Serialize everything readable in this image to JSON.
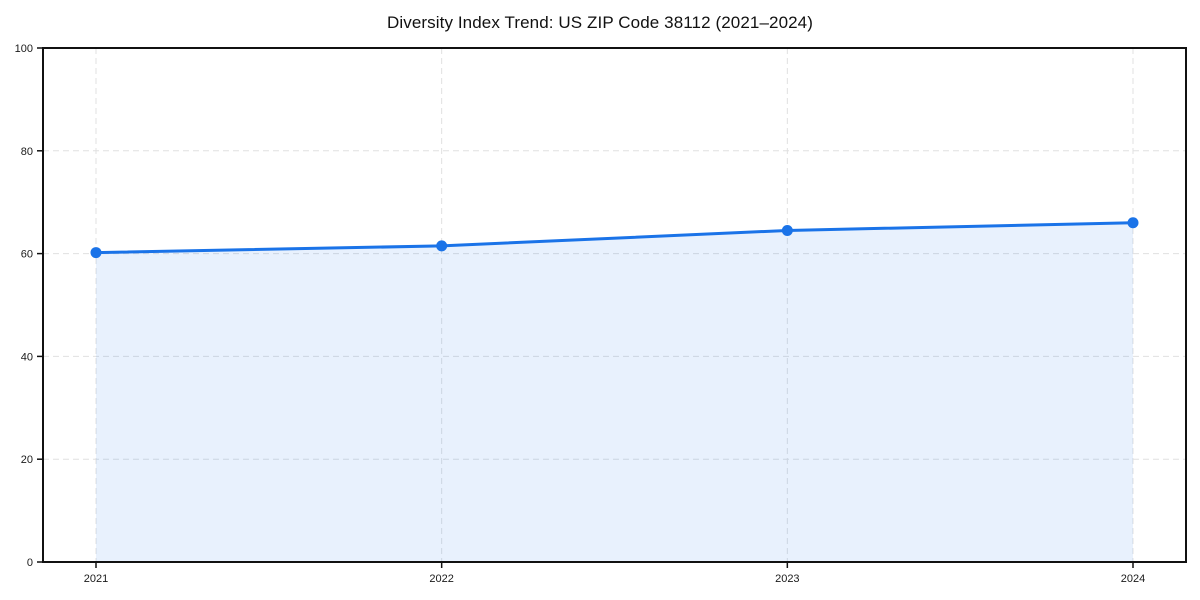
{
  "page": {
    "background": "#ffffff"
  },
  "chart_data": {
    "type": "area",
    "title": "Diversity Index Trend: US ZIP Code 38112 (2021–2024)",
    "categories": [
      "2021",
      "2022",
      "2023",
      "2024"
    ],
    "values": [
      60.2,
      61.5,
      64.5,
      66.0
    ],
    "xlabel": "",
    "ylabel": "",
    "ylim": [
      0,
      100
    ],
    "yticks": [
      0,
      20,
      40,
      60,
      80,
      100
    ],
    "grid": true,
    "legend_position": "none",
    "colors": {
      "line": "#1a73e8",
      "fill": "rgba(26,115,232,0.10)",
      "grid": "#e0e0e0",
      "axis": "#111111",
      "text": "#1a1a1a"
    }
  }
}
